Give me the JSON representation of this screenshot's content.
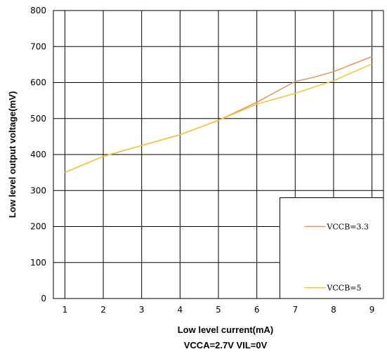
{
  "chart_data": {
    "type": "line",
    "xlabel": "Low level current(mA)",
    "ylabel": "Low level output voltage(mV)",
    "condition": "VCCA=2.7V VIL=0V",
    "x_ticks": [
      "1",
      "2",
      "3",
      "4",
      "5",
      "6",
      "7",
      "8",
      "9"
    ],
    "y_ticks": [
      "0",
      "100",
      "200",
      "300",
      "400",
      "500",
      "600",
      "700",
      "800"
    ],
    "xlim": [
      0.7,
      9.3
    ],
    "ylim": [
      0,
      800
    ],
    "grid": true,
    "legend_position": "bottom-right",
    "series": [
      {
        "name": "VCCB=3.3",
        "color": "#e8925a",
        "x": [
          1,
          2,
          3,
          4,
          5,
          6,
          6.6,
          7,
          7.5,
          8,
          9
        ],
        "y": [
          350,
          395,
          425,
          455,
          495,
          545,
          580,
          603,
          615,
          630,
          672
        ]
      },
      {
        "name": "VCCB=5",
        "color": "#f2c530",
        "x": [
          1,
          2,
          3,
          4,
          5,
          6,
          7,
          8,
          9
        ],
        "y": [
          350,
          395,
          425,
          455,
          495,
          540,
          570,
          605,
          652
        ]
      }
    ]
  }
}
